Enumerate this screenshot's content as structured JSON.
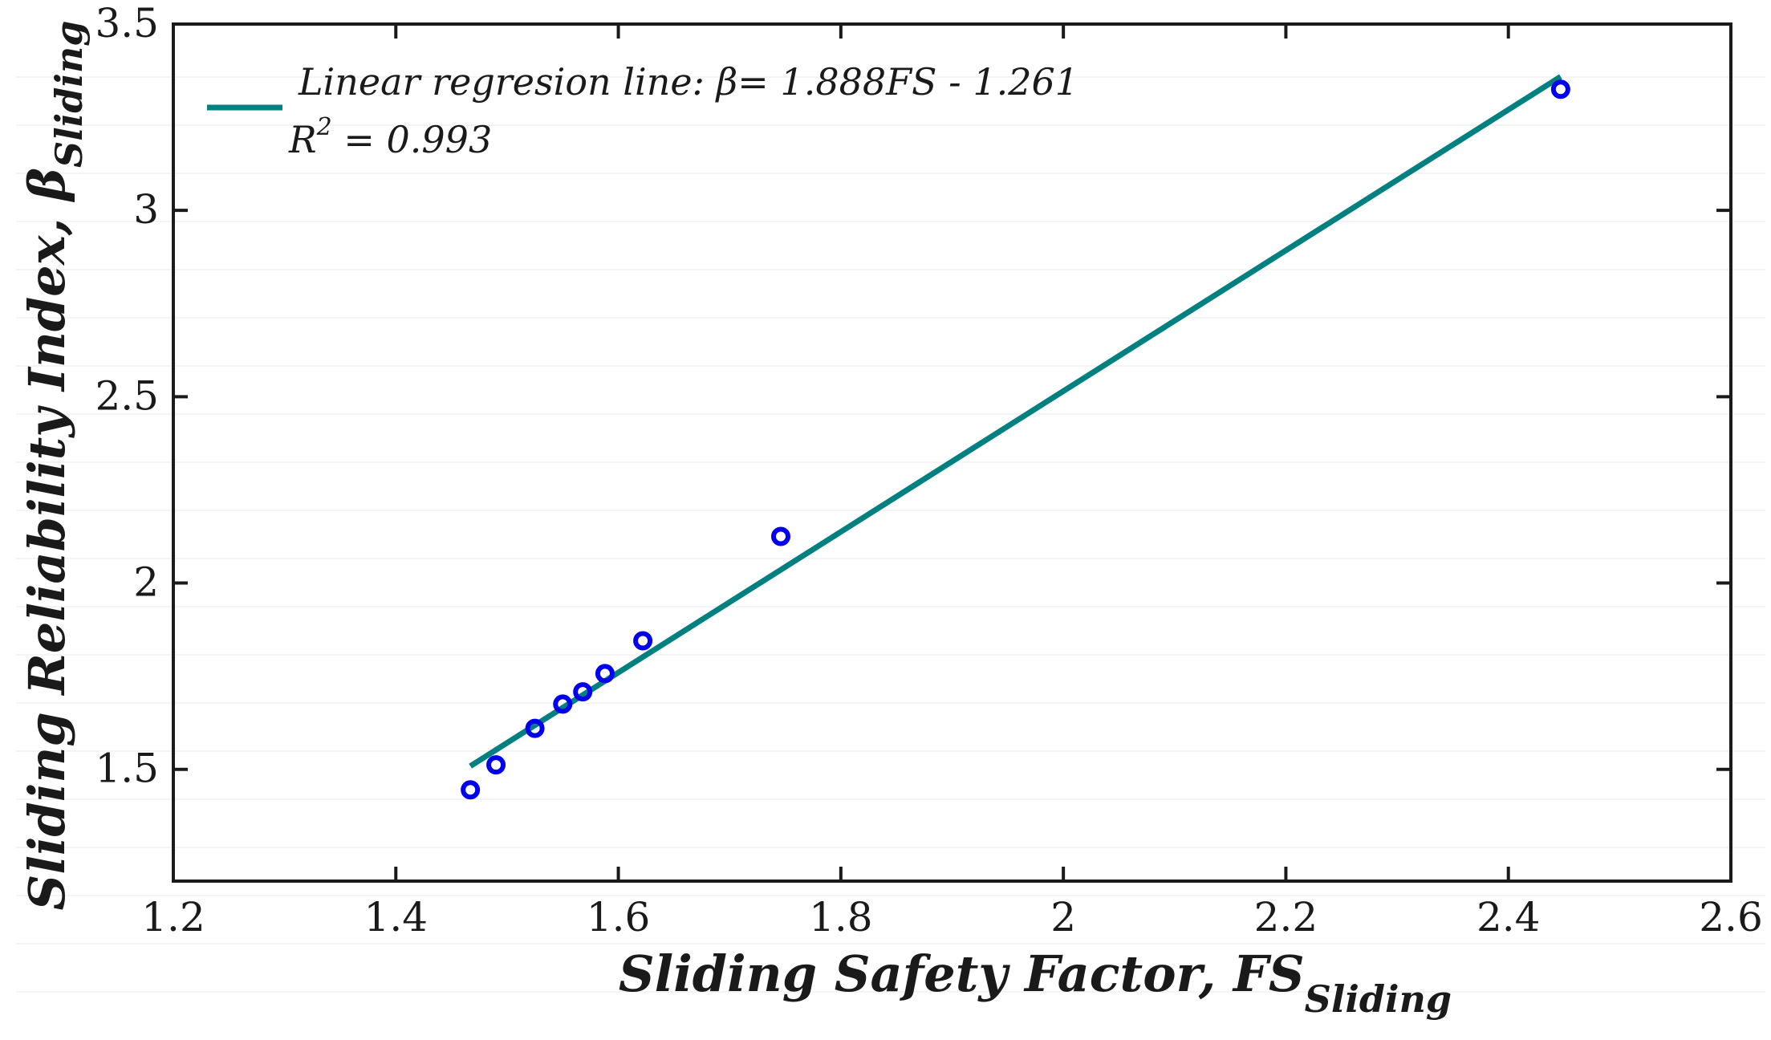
{
  "chart_data": {
    "type": "scatter",
    "title": "",
    "xlabel": "Sliding Safety Factor, FS",
    "xlabel_sub": "Sliding",
    "ylabel": "Sliding Reliability Index, β",
    "ylabel_sub": "Sliding",
    "xlim": [
      1.2,
      2.6
    ],
    "ylim": [
      1.2,
      3.5
    ],
    "xticks": [
      1.2,
      1.4,
      1.6,
      1.8,
      2.0,
      2.2,
      2.4,
      2.6
    ],
    "xtick_labels": [
      "1.2",
      "1.4",
      "1.6",
      "1.8",
      "2",
      "2.2",
      "2.4",
      "2.6"
    ],
    "yticks": [
      1.5,
      2.0,
      2.5,
      3.0,
      3.5
    ],
    "ytick_labels": [
      "1.5",
      "2",
      "2.5",
      "3",
      "3.5"
    ],
    "grid": false,
    "legend_position": "top-left",
    "series": [
      {
        "name": "Data points",
        "kind": "scatter",
        "color": "#0000ee",
        "x": [
          1.467,
          1.49,
          1.525,
          1.55,
          1.568,
          1.588,
          1.622,
          1.746,
          2.447
        ],
        "y": [
          1.445,
          1.512,
          1.61,
          1.675,
          1.708,
          1.757,
          1.845,
          2.125,
          3.325
        ]
      },
      {
        "name": "Linear regression line",
        "kind": "line",
        "color": "#008080",
        "slope": 1.888,
        "intercept": -1.261,
        "x_range": [
          1.467,
          2.447
        ]
      }
    ],
    "legend": {
      "line_label_prefix": "Linear regresion line: ",
      "line_label_equation": "β= 1.888FS - 1.261",
      "r2_prefix": "R",
      "r2_sup": "2",
      "r2_suffix": " = 0.993"
    }
  }
}
